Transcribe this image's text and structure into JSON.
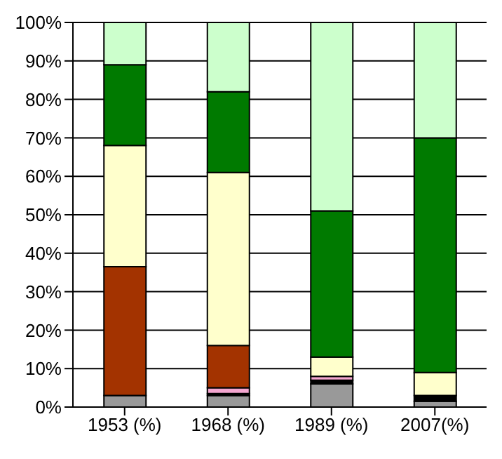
{
  "chart_data": {
    "type": "bar",
    "stacked": true,
    "categories": [
      "1953 (%)",
      "1968 (%)",
      "1989 (%)",
      "2007(%)"
    ],
    "series": [
      {
        "color": "#999999",
        "values": [
          3,
          3,
          6,
          1.5
        ]
      },
      {
        "color": "#000000",
        "values": [
          0,
          0.5,
          1,
          1.5
        ]
      },
      {
        "color": "#f4a6d0",
        "values": [
          0,
          1.5,
          1,
          0
        ]
      },
      {
        "color": "#a33300",
        "values": [
          33.5,
          11,
          0,
          0
        ]
      },
      {
        "color": "#ffffcc",
        "values": [
          31.5,
          45,
          5,
          6
        ]
      },
      {
        "color": "#007a00",
        "values": [
          21,
          21,
          38,
          61
        ]
      },
      {
        "color": "#ccffcc",
        "values": [
          11,
          18,
          49,
          30
        ]
      }
    ],
    "ylim": [
      0,
      100
    ],
    "yticks": [
      {
        "value": 0,
        "label": "0%"
      },
      {
        "value": 10,
        "label": "10%"
      },
      {
        "value": 20,
        "label": "20%"
      },
      {
        "value": 30,
        "label": "30%"
      },
      {
        "value": 40,
        "label": "40%"
      },
      {
        "value": 50,
        "label": "50%"
      },
      {
        "value": 60,
        "label": "60%"
      },
      {
        "value": 70,
        "label": "70%"
      },
      {
        "value": 80,
        "label": "80%"
      },
      {
        "value": 90,
        "label": "90%"
      },
      {
        "value": 100,
        "label": "100%"
      }
    ],
    "grid": "y"
  }
}
